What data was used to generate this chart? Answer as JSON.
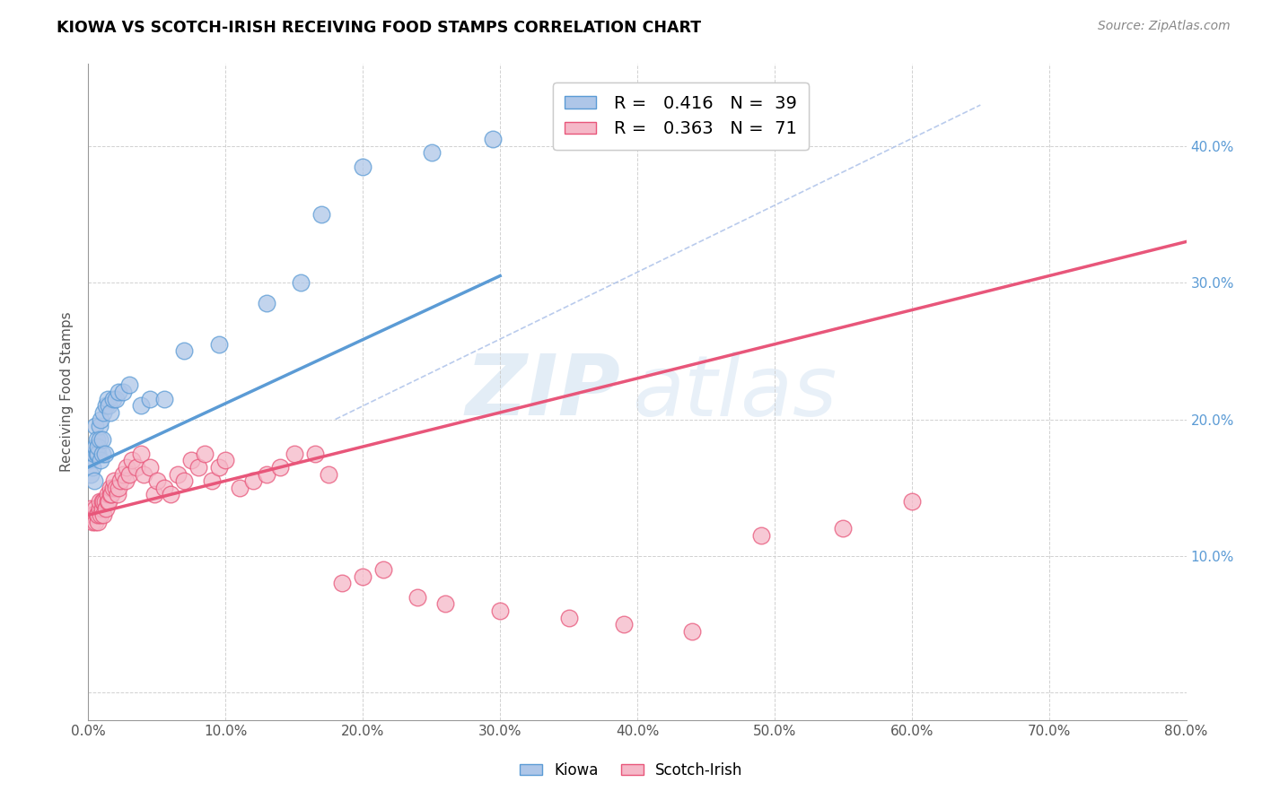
{
  "title": "KIOWA VS SCOTCH-IRISH RECEIVING FOOD STAMPS CORRELATION CHART",
  "source": "Source: ZipAtlas.com",
  "ylabel": "Receiving Food Stamps",
  "xlim": [
    0.0,
    0.8
  ],
  "ylim": [
    -0.02,
    0.46
  ],
  "xticks": [
    0.0,
    0.1,
    0.2,
    0.3,
    0.4,
    0.5,
    0.6,
    0.7,
    0.8
  ],
  "yticks": [
    0.0,
    0.1,
    0.2,
    0.3,
    0.4
  ],
  "xtick_labels": [
    "0.0%",
    "10.0%",
    "20.0%",
    "30.0%",
    "40.0%",
    "50.0%",
    "60.0%",
    "70.0%",
    "80.0%"
  ],
  "ytick_labels_right": [
    "",
    "10.0%",
    "20.0%",
    "30.0%",
    "40.0%"
  ],
  "kiowa_R": 0.416,
  "kiowa_N": 39,
  "scotch_R": 0.363,
  "scotch_N": 71,
  "kiowa_color": "#aec6e8",
  "scotch_color": "#f5b8c8",
  "kiowa_line_color": "#5b9bd5",
  "scotch_line_color": "#e8567a",
  "diagonal_color": "#a8bee8",
  "watermark_zip": "ZIP",
  "watermark_atlas": "atlas",
  "legend_kiowa": "Kiowa",
  "legend_scotch": "Scotch-Irish",
  "kiowa_x": [
    0.001,
    0.002,
    0.003,
    0.004,
    0.004,
    0.005,
    0.005,
    0.006,
    0.006,
    0.007,
    0.007,
    0.008,
    0.008,
    0.009,
    0.009,
    0.01,
    0.01,
    0.011,
    0.012,
    0.013,
    0.014,
    0.015,
    0.016,
    0.018,
    0.02,
    0.022,
    0.025,
    0.03,
    0.038,
    0.045,
    0.055,
    0.07,
    0.095,
    0.13,
    0.155,
    0.17,
    0.2,
    0.25,
    0.295
  ],
  "kiowa_y": [
    0.17,
    0.16,
    0.165,
    0.155,
    0.175,
    0.18,
    0.195,
    0.175,
    0.185,
    0.175,
    0.18,
    0.195,
    0.185,
    0.17,
    0.2,
    0.175,
    0.185,
    0.205,
    0.175,
    0.21,
    0.215,
    0.21,
    0.205,
    0.215,
    0.215,
    0.22,
    0.22,
    0.225,
    0.21,
    0.215,
    0.215,
    0.25,
    0.255,
    0.285,
    0.3,
    0.35,
    0.385,
    0.395,
    0.405
  ],
  "scotch_x": [
    0.001,
    0.002,
    0.003,
    0.003,
    0.004,
    0.005,
    0.005,
    0.006,
    0.007,
    0.007,
    0.008,
    0.008,
    0.009,
    0.01,
    0.01,
    0.011,
    0.011,
    0.012,
    0.013,
    0.014,
    0.014,
    0.015,
    0.016,
    0.016,
    0.017,
    0.018,
    0.019,
    0.02,
    0.021,
    0.022,
    0.023,
    0.025,
    0.027,
    0.028,
    0.03,
    0.032,
    0.035,
    0.038,
    0.04,
    0.045,
    0.048,
    0.05,
    0.055,
    0.06,
    0.065,
    0.07,
    0.075,
    0.08,
    0.085,
    0.09,
    0.095,
    0.1,
    0.11,
    0.12,
    0.13,
    0.14,
    0.15,
    0.165,
    0.175,
    0.185,
    0.2,
    0.215,
    0.24,
    0.26,
    0.3,
    0.35,
    0.39,
    0.44,
    0.49,
    0.55,
    0.6
  ],
  "scotch_y": [
    0.13,
    0.135,
    0.125,
    0.13,
    0.13,
    0.125,
    0.135,
    0.13,
    0.125,
    0.13,
    0.135,
    0.14,
    0.13,
    0.135,
    0.14,
    0.13,
    0.14,
    0.14,
    0.135,
    0.14,
    0.145,
    0.14,
    0.145,
    0.15,
    0.145,
    0.15,
    0.155,
    0.15,
    0.145,
    0.15,
    0.155,
    0.16,
    0.155,
    0.165,
    0.16,
    0.17,
    0.165,
    0.175,
    0.16,
    0.165,
    0.145,
    0.155,
    0.15,
    0.145,
    0.16,
    0.155,
    0.17,
    0.165,
    0.175,
    0.155,
    0.165,
    0.17,
    0.15,
    0.155,
    0.16,
    0.165,
    0.175,
    0.175,
    0.16,
    0.08,
    0.085,
    0.09,
    0.07,
    0.065,
    0.06,
    0.055,
    0.05,
    0.045,
    0.115,
    0.12,
    0.14
  ],
  "kiowa_line_x": [
    0.0,
    0.3
  ],
  "kiowa_line_y": [
    0.165,
    0.305
  ],
  "scotch_line_x": [
    0.0,
    0.8
  ],
  "scotch_line_y": [
    0.13,
    0.33
  ]
}
